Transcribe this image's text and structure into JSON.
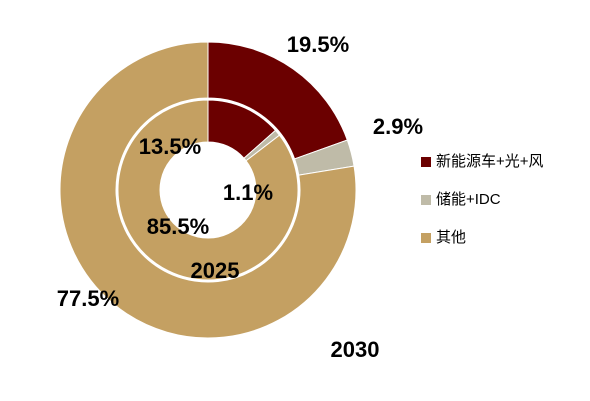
{
  "chart_data": {
    "type": "donut",
    "categories": [
      "新能源车+光+风",
      "储能+IDC",
      "其他"
    ],
    "colors": [
      "#6b0000",
      "#bfbba8",
      "#c4a062"
    ],
    "series": [
      {
        "name": "2030",
        "values": [
          19.5,
          2.9,
          77.5
        ],
        "value_labels": [
          "19.5%",
          "2.9%",
          "77.5%"
        ]
      },
      {
        "name": "2025",
        "values": [
          13.5,
          1.1,
          85.5
        ],
        "value_labels": [
          "13.5%",
          "1.1%",
          "85.5%"
        ]
      }
    ]
  }
}
